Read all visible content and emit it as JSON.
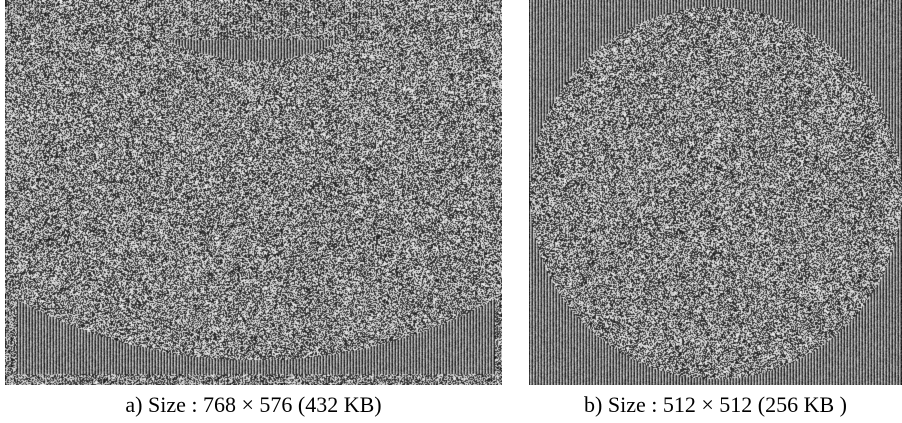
{
  "figure": {
    "panels": [
      {
        "id": "a",
        "caption": "a) Size : 768 × 576  (432 KB)",
        "content": "ultrasound-sector-scan-encrypted"
      },
      {
        "id": "b",
        "caption": "b) Size : 512 × 512  (256 KB )",
        "content": "circular-fov-scan-encrypted"
      }
    ]
  }
}
